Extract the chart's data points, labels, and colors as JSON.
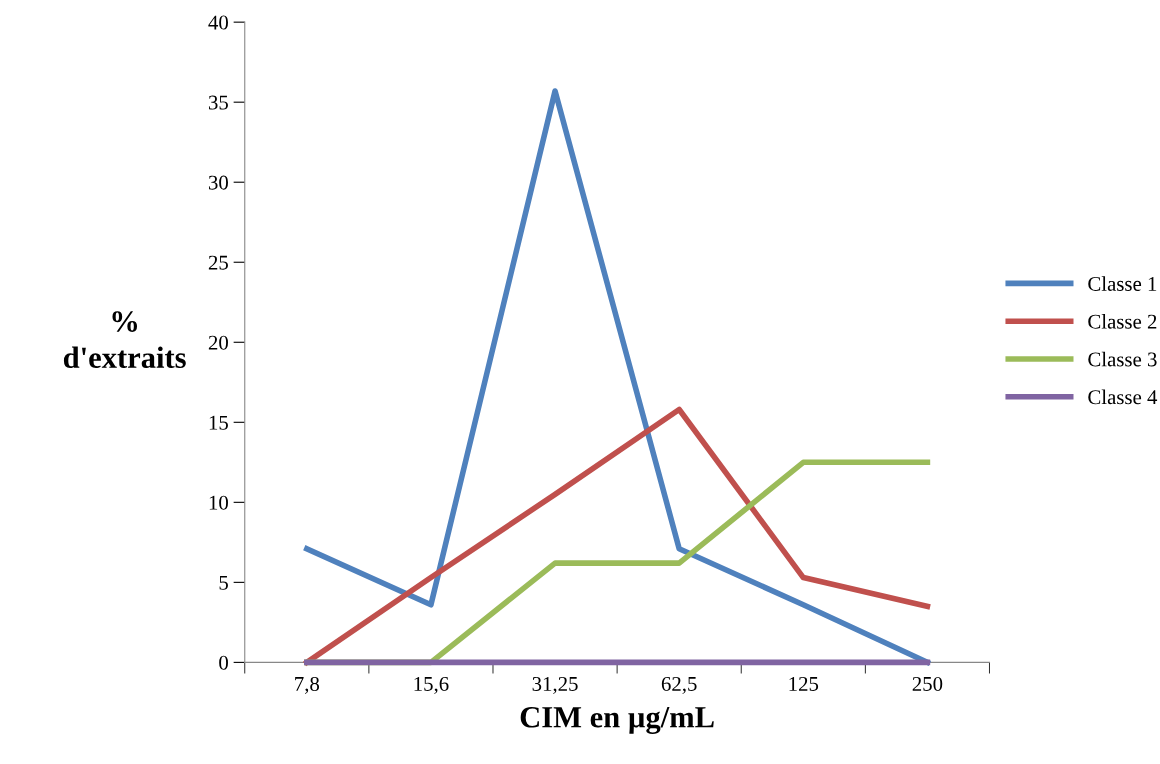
{
  "chart_data": {
    "type": "line",
    "xlabel": "CIM en µg/mL",
    "ylabel": "%\nd'extraits",
    "categories": [
      "7,8",
      "15,6",
      "31,25",
      "62,5",
      "125",
      "250"
    ],
    "series": [
      {
        "name": "Classe 1",
        "color": "#4f81bd",
        "values": [
          7.1,
          3.6,
          35.7,
          7.1,
          3.6,
          0
        ]
      },
      {
        "name": "Classe 2",
        "color": "#c0504d",
        "values": [
          0,
          5.3,
          10.5,
          15.8,
          5.3,
          3.5
        ]
      },
      {
        "name": "Classe 3",
        "color": "#9bbb59",
        "values": [
          0,
          0,
          6.2,
          6.2,
          12.5,
          12.5
        ]
      },
      {
        "name": "Classe 4",
        "color": "#8064a2",
        "values": [
          0,
          0,
          0,
          0,
          0,
          0
        ]
      }
    ],
    "ylim": [
      0,
      40
    ],
    "yticks": [
      0,
      5,
      10,
      15,
      20,
      25,
      30,
      35,
      40
    ],
    "grid": false,
    "legend": "right",
    "marker": "none",
    "line_style": "solid"
  }
}
